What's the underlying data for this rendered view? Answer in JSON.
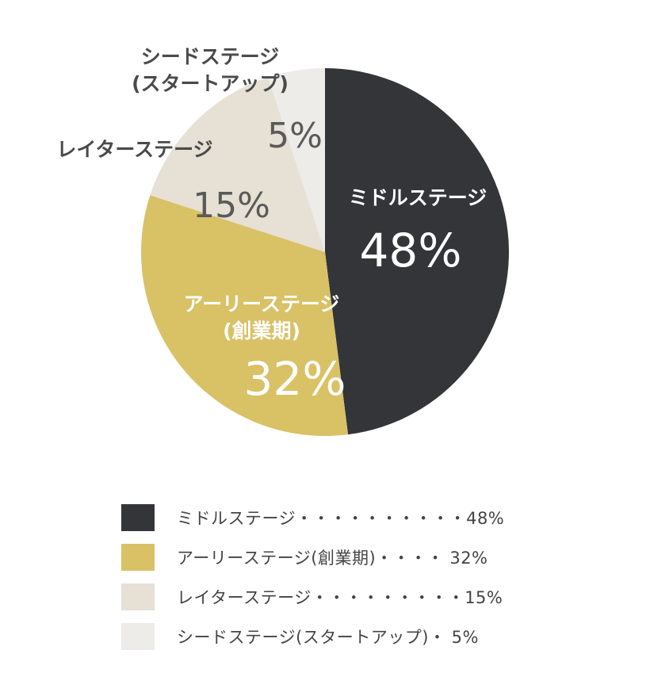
{
  "chart_data": {
    "type": "pie",
    "title": "",
    "start_angle_deg": 0,
    "direction": "clockwise",
    "slices": [
      {
        "label_lines": [
          "ミドルステージ"
        ],
        "value": 48,
        "value_label": "48%",
        "color": "#343539",
        "text_color": "#ffffff"
      },
      {
        "label_lines": [
          "アーリーステージ",
          "(創業期)"
        ],
        "value": 32,
        "value_label": "32%",
        "color": "#d9c166",
        "text_color": "#ffffff"
      },
      {
        "label_lines": [
          "レイターステージ"
        ],
        "value": 15,
        "value_label": "15%",
        "color": "#e6e0d5",
        "text_color": "#555555"
      },
      {
        "label_lines": [
          "シードステージ",
          "(スタートアップ)"
        ],
        "value": 5,
        "value_label": "5%",
        "color": "#eeece9",
        "text_color": "#555555"
      }
    ]
  },
  "legend": {
    "items": [
      {
        "text": "ミドルステージ・・・・・・・・・・48%",
        "color": "#343539"
      },
      {
        "text": "アーリーステージ(創業期)・・・・ 32%",
        "color": "#d9c166"
      },
      {
        "text": "レイターステージ・・・・・・・・・15%",
        "color": "#e6e0d5"
      },
      {
        "text": "シードステージ(スタートアップ)・ 5%",
        "color": "#eeece9"
      }
    ]
  }
}
